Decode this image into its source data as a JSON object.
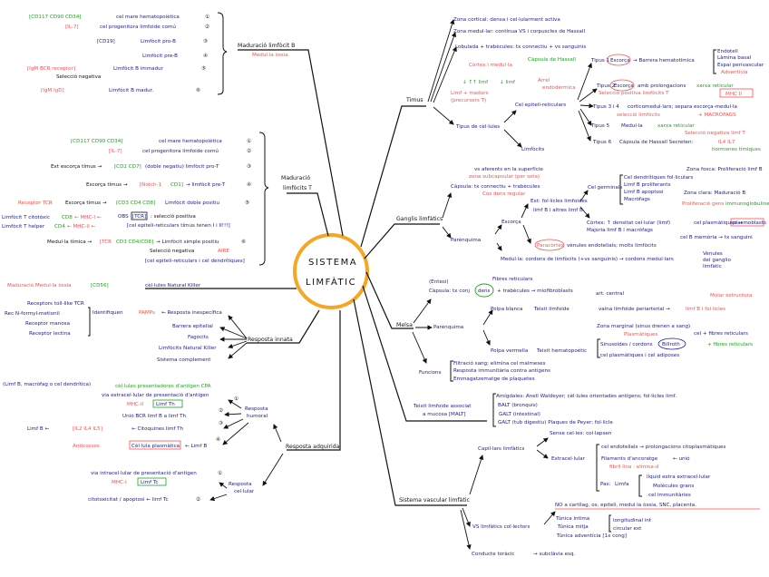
{
  "colors": {
    "text": "#1b1b8f",
    "highlight": "#ff4d4d",
    "marker": "#1fa31f",
    "center_ring": "#f5a623"
  },
  "center": {
    "line1": "SISTEMA",
    "line2": "LIMFÀTIC"
  },
  "b_maturation": {
    "title": "Maduració limfòcit B",
    "subtitle": "Medul·la òssia",
    "rows": [
      {
        "markers": "[CD117  CD90  CD34]",
        "text": "cel mare hematopoiètica",
        "step": "①"
      },
      {
        "markers": "[IL-7]",
        "text": "cel progenitora limfoide comú",
        "step": "②"
      },
      {
        "markers": "[CD19]",
        "text": "Limfòcit pro-B",
        "step": "③"
      },
      {
        "markers": "",
        "text": "Limfòcit pre-B",
        "step": "④"
      },
      {
        "markers": "[IgM  BCR receptor]",
        "text": "Limfòcit B immadur",
        "step": "⑤"
      },
      {
        "markers": "[IgM  IgD]",
        "text": "Limfòcit B madur.",
        "step": "⑥"
      }
    ],
    "note": "Selecció negativa"
  },
  "t_maturation": {
    "title1": "Maduració",
    "title2": "limfòcits T",
    "r1_markers": "[CD117  CD90  CD34]",
    "r1_text": "cel mare hematopoiètica",
    "r1_step": "①",
    "r2_markers": "[IL-7]",
    "r2_text": "cel progenitora limfoide comú",
    "r2_step": "②",
    "r3_pre": "Ext escorça tímus →",
    "r3_markers": "[CD2 CD7]",
    "r3_text": "(doble negatiu) limfòcit pro-T",
    "r3_step": "③",
    "r4_pre": "Escorça tímus →",
    "r4_markers": "[Notch-1",
    "r4_markers2": "CD1]",
    "r4_text": "→ limfòcit pre-T",
    "r4_step": "④",
    "r5_red": "Receptor TCR",
    "r5_pre": "Escorça tímus →",
    "r5_markers": "[CD3 CD4 CD8]",
    "r5_text": "Limfòcit doble positiu",
    "r5_step": "⑤",
    "cd8_text": "Limfòcit T citotòxic",
    "cd8": "CD8",
    "mhc1": "← MHC-I ←",
    "cd4_text": "Limfòcit T helper",
    "cd4": "CD4",
    "mhc2": "← MHC-II ←",
    "obs": "OBS",
    "tcr": "[TCR]",
    "obs_text": ": selecció positiva",
    "obs_note": "[cel epiteli-reticulars tímus tenen I i II!!!]",
    "r6_pre": "Medul·la tímica →",
    "r6_red": "[TCR",
    "r6_markers": "CD3 CD4/CD8]",
    "r6_text": "→ Limfòcit simple positiu",
    "r6_step": "⑥",
    "neg": "Selecció negativa",
    "aire": "AIRE",
    "neg_note": "[cel epiteli-reticulars i cel dendrítiques]"
  },
  "nk": {
    "origin": "Maduració Medul·la òssia",
    "marker": "[CD56]",
    "label": "cèl·lules Natural Killer"
  },
  "innate": {
    "title": "Resposta innata",
    "receptors": [
      "Receptors toll-like TCR",
      "Rec N-formyl-metionil",
      "Receptor manosa",
      "Receptor lectina"
    ],
    "identify": "Identifiquen",
    "pamps": "PAMPs",
    "specific": "← Resposta inespecífica",
    "items": [
      "Barrera epitelial",
      "Fagòcits",
      "Limfòcits Natural Killer",
      "Sistema complement"
    ]
  },
  "acquired": {
    "title": "Resposta adquirida",
    "humoral": [
      "Resposta",
      "humoral"
    ],
    "cellular": [
      "Resposta",
      "cel·lular"
    ],
    "cpa_examples": "(Limf B, macròfag o cel dendrítica)",
    "cpa": "cèl·lules presentadores d'antigen CPA",
    "h1": "via extracel·lular de presentació d'antigen",
    "h1_step": "①",
    "h_mhc": "MHC-II",
    "h_th": "Limf Th",
    "h2": "Unió BCR limf B a limf Th",
    "h2_step": "②",
    "h3_limfb": "Limf B ←",
    "h3_il": "[IL2  IL4  IL5]",
    "h3_text": "← Citoquines limf Th",
    "h3_step": "③",
    "h4_ab": "Anticossos",
    "h4_plasma": "Cèl·lula plasmàtica",
    "h4_text": "← Limf B",
    "h4_step": "④",
    "c1": "via intracel·lular de presentació d'antigen",
    "c1_step": "①",
    "c_mhc": "MHC-I",
    "c_tc": "Limf Tc",
    "c2": "citotoxicitat / apoptosi ← limf Tc",
    "c2_step": "②"
  },
  "thymus": {
    "title": "Timus",
    "cortex": "Zona cortical: densa i cel·lularment activa",
    "medulla": "Zona medul·lar: contínua VS i corpuscles de Hassall",
    "lobes": "Lobulada + trabècules: tx connectiu + vs sanguinis",
    "cm": "Còrtex i medul·la",
    "hassall": "Càpsula de Hassall",
    "more_limf": "↓ ↑↑ limf",
    "less_limf": "↓ limf",
    "precursors1": "Limf + madurs",
    "precursors2": "(precursors T)",
    "cell_types": "Tipus de cèl·lules",
    "epi": "Cel epiteli-reticulars",
    "origin1": "Arrel",
    "origin2": "endodèrmica",
    "lymph": "Limfòcits",
    "t1": "Tipus 1",
    "t1_cortex": "Escorça",
    "t1_text": "→ Barrera hematotímica",
    "barrier": [
      "Endoteli",
      "Làmina basal",
      "Espai perivascular",
      "Adventícia"
    ],
    "t2": "Tipus 2",
    "t2_cortex": "Escorça",
    "t2_text": "amb prolongacions",
    "t2_green": "xarxa reticular",
    "t2_red": "Selecció positiva limfòcits T",
    "t2_box": "MHC II",
    "t34": "Tipus 3 i 4",
    "t34_text": "corticomedul·lars; separa escorça-medul·la",
    "t34_red": "selecció limfòcits",
    "t34_red2": "+ MACRÒFAGS",
    "t5": "Tipus 5",
    "t5_text": "Medul·la",
    "t5_green": "xarxa reticular",
    "t5_red": "Selecció negativa limf T",
    "t6": "Tipus 6",
    "t6_text": "Càpsula de Hassall   Secreten:",
    "t6_red": "IL4 IL7",
    "t6_green": "hormones tímiques"
  },
  "ganglia": {
    "title": "Ganglis limfàtics",
    "aff": "vs aferents en la superfície",
    "subcap": "zona subcapsular (per sota)",
    "capsule": "Càpsula: tx connectiu + trabècules",
    "dense": "Cos dens regular",
    "parenchyma": "Parènquima",
    "cortex": "Escorça",
    "ext": "Ext: fol·licles limfoides",
    "ext2": "limf B i altres limf B",
    "germ": "Cel germinals",
    "germ_items": [
      "Cel dendrítiques fol·liculars",
      "Limf B proliferants",
      "Limf B apoptosi",
      "Macròfags"
    ],
    "dark": "Zona fosca: Proliferació limf B",
    "light": "Zona clara: Maduració B",
    "light_red": "Proliferació gens",
    "light_green": "immunoglobulines",
    "cortex_text": "Còrtex: ↑ densitat cel·lular (limf)",
    "cortex_text2": "Majoria limf B i macròfags",
    "plasma": "cel plasmàtiques →",
    "plasma_box": "plasmoblasts",
    "memory": "cel B memòria → tx sanguini",
    "para_label": "Paracòrtex",
    "para": "vènules endotelials; molts limfòcits",
    "med": "Medul·la: cordons de limfòcits (+vs sanguinis) → cordons medul·lars",
    "venules": [
      "Vènules",
      "del ganglio",
      "limfàtic"
    ]
  },
  "spleen": {
    "title": "Melsa",
    "ent": "(Entesi)",
    "capsule": "Càpsula: tx conj",
    "dens": "dens",
    "capsule2": "+ trabècules → miofibroblasts",
    "fibres": "Fibres reticulars",
    "parenchyma": "Parènquima",
    "white": "Polpa blanca",
    "white_text": "Teixit limfoide",
    "art": "art. central",
    "pals": "vaina limfoide periarterial →",
    "follicles": "limf B i fol·licles",
    "marginal": "Zona marginal (sinus drenen a sang)",
    "structure": "Molar estructura",
    "red": "Polpa vermella",
    "red_text": "Teixit hematopoètic",
    "sinus": "Sinusoides / cordons",
    "billroth": "Billroth",
    "plasm_red": "Plasmàtiques",
    "fib": "cel + fibres reticulars",
    "fib_green": "+ fibres reticulars",
    "cells": "cel plasmàtiques i cel adiposes",
    "functions": "Funcions",
    "fn": [
      "Filtració sang; elimina cel malmeses",
      "Resposta immunitària contra antígens",
      "Emmagatzematge de plaquetes"
    ]
  },
  "malt": {
    "title1": "Teixit limfoide associat",
    "title2": "a mucosa [MALT]",
    "tonsils": "Amígdales: Anell Waldeyer; cèl·lules orientades antígens; fol·licles limf.",
    "balt": "BALT (bronquis)",
    "galt": "GALT (intestinal)",
    "galt2": "GALT (tub digestiu) Plaques de Peyer; fol·licle"
  },
  "vascular": {
    "title": "Sistema vascular limfàtic",
    "capillaries": "Capil·lars limfàtics",
    "collapse": "Sense cel·les: col·lapsen",
    "extra": "Extracel·lular",
    "endo": "cel endotelials → prolongacions citoplasmàtiques",
    "anchor": "Filaments d'ancoratge",
    "union": "← unió",
    "fibrillin": "fibril·lina : elmina-d",
    "pas": "Pas:",
    "limfa": "Limfa",
    "pas_items": [
      "líquid extra extracel·lular",
      "Molècules grans",
      "cel immunitàries"
    ],
    "absent": "NO a cartílag, os, epiteli, medul·la òssia, SNC, placenta.",
    "collectors": "VS limfàtics col·lectors",
    "tunics": [
      "Túnica íntima",
      "Túnica mitja",
      "Túnica adventícia [1x cong]"
    ],
    "muscle": [
      "longitudinal int",
      "circular ext"
    ],
    "duct": "Conducte toràcic",
    "subclavian": "→ subclàvia esq."
  }
}
